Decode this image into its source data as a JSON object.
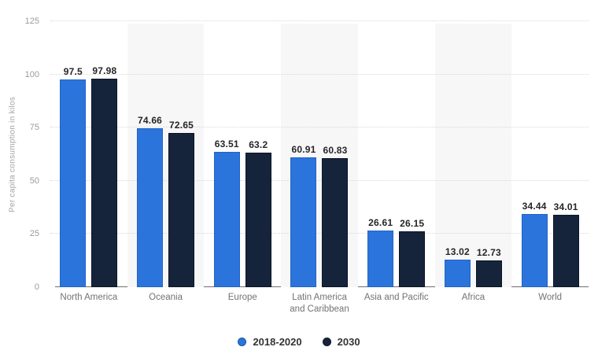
{
  "chart_data": {
    "type": "bar",
    "title": "",
    "xlabel": "",
    "ylabel": "Per capita consumption in kilos",
    "categories": [
      "North America",
      "Oceania",
      "Europe",
      "Latin America and Caribbean",
      "Asia and Pacific",
      "Africa",
      "World"
    ],
    "series": [
      {
        "name": "2018-2020",
        "color": "#2b74dc",
        "border_color": "#2263c6",
        "values": [
          97.5,
          74.66,
          63.51,
          60.91,
          26.61,
          13.02,
          34.44
        ]
      },
      {
        "name": "2030",
        "color": "#16243b",
        "border_color": "#0b1526",
        "values": [
          97.98,
          72.65,
          63.2,
          60.83,
          26.15,
          12.73,
          34.01
        ]
      }
    ],
    "y_ticks": [
      125,
      100,
      75,
      50,
      25,
      0
    ],
    "ylim": [
      0,
      125
    ],
    "grid": "horizontal-dotted",
    "legend_position": "bottom",
    "value_labels": true,
    "banded_category_indices": [
      1,
      3,
      5
    ],
    "band_color": "#f7f7f8",
    "gridline_color": "#d8d8d8",
    "axis_line_color": "#6e6e6e",
    "tick_label_color": "#9b9b9b",
    "category_label_color": "#737373",
    "value_label_color": "#262626"
  }
}
